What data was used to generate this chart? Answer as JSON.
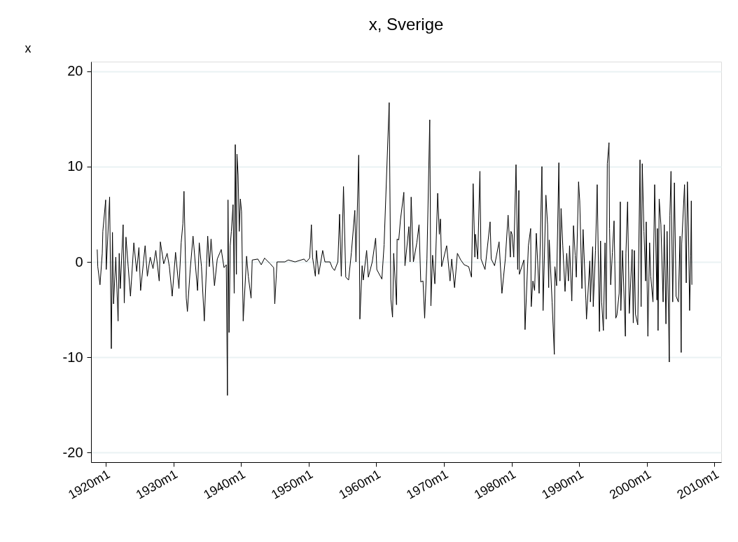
{
  "chart_data": {
    "type": "line",
    "title": "x, Sverige",
    "ylabel": "x",
    "xlim": [
      "1917-11",
      "2011-01"
    ],
    "ylim": [
      -21,
      21
    ],
    "xticks": [
      {
        "value": "1920-01",
        "label": "1920m1"
      },
      {
        "value": "1930-01",
        "label": "1930m1"
      },
      {
        "value": "1940-01",
        "label": "1940m1"
      },
      {
        "value": "1950-01",
        "label": "1950m1"
      },
      {
        "value": "1960-01",
        "label": "1960m1"
      },
      {
        "value": "1970-01",
        "label": "1970m1"
      },
      {
        "value": "1980-01",
        "label": "1980m1"
      },
      {
        "value": "1990-01",
        "label": "1990m1"
      },
      {
        "value": "2000-01",
        "label": "2000m1"
      },
      {
        "value": "2010-01",
        "label": "2010m1"
      }
    ],
    "yticks": [
      -20,
      -10,
      0,
      10,
      20
    ],
    "grid": "y",
    "line_style": "solid",
    "series": [
      {
        "color": "#000000",
        "x": [
          "1918-10",
          "1918-11",
          "1919-03",
          "1919-07",
          "1919-08",
          "1920-01",
          "1920-02",
          "1920-08",
          "1920-11",
          "1921-01",
          "1921-03",
          "1921-07",
          "1921-11",
          "1922-01",
          "1922-03",
          "1922-08",
          "1922-10",
          "1923-01",
          "1923-05",
          "1923-09",
          "1924-03",
          "1924-08",
          "1924-12",
          "1925-03",
          "1925-11",
          "1926-03",
          "1926-08",
          "1927-01",
          "1927-06",
          "1927-12",
          "1928-02",
          "1928-08",
          "1929-02",
          "1929-06",
          "1929-11",
          "1930-05",
          "1930-11",
          "1931-03",
          "1931-06",
          "1931-08",
          "1931-12",
          "1932-02",
          "1932-07",
          "1932-12",
          "1933-08",
          "1933-11",
          "1934-03",
          "1934-08",
          "1935-02",
          "1935-05",
          "1935-08",
          "1936-02",
          "1936-07",
          "1937-02",
          "1937-07",
          "1937-11",
          "1938-01",
          "1938-02",
          "1938-04",
          "1938-06",
          "1938-08",
          "1938-11",
          "1939-01",
          "1939-03",
          "1939-05",
          "1939-06",
          "1939-08",
          "1939-10",
          "1939-12",
          "1940-02",
          "1940-05",
          "1940-11",
          "1941-02",
          "1941-07",
          "1941-09",
          "1942-07",
          "1943-01",
          "1943-07",
          "1944-05",
          "1944-11",
          "1945-01",
          "1945-05",
          "1946-07",
          "1947-01",
          "1948-01",
          "1949-05",
          "1949-09",
          "1950-03",
          "1950-06",
          "1950-08",
          "1951-01",
          "1951-03",
          "1951-07",
          "1952-02",
          "1952-06",
          "1953-03",
          "1953-07",
          "1953-11",
          "1954-05",
          "1954-08",
          "1954-11",
          "1955-03",
          "1955-07",
          "1955-12",
          "1956-05",
          "1956-11",
          "1957-01",
          "1957-06",
          "1957-08",
          "1957-12",
          "1958-02",
          "1958-08",
          "1958-11",
          "1959-06",
          "1959-12",
          "1960-02",
          "1960-11",
          "1961-03",
          "1961-12",
          "1962-03",
          "1962-06",
          "1962-08",
          "1963-01",
          "1963-02",
          "1963-05",
          "1963-08",
          "1964-02",
          "1964-04",
          "1964-11",
          "1965-01",
          "1965-03",
          "1965-07",
          "1966-01",
          "1966-05",
          "1966-08",
          "1966-12",
          "1967-03",
          "1967-07",
          "1967-12",
          "1968-02",
          "1968-05",
          "1968-09",
          "1969-02",
          "1969-05",
          "1969-07",
          "1969-09",
          "1970-06",
          "1970-12",
          "1971-03",
          "1971-08",
          "1972-01",
          "1972-07",
          "1973-01",
          "1973-09",
          "1974-02",
          "1974-05",
          "1974-08",
          "1974-09",
          "1975-01",
          "1975-05",
          "1975-07",
          "1976-02",
          "1976-11",
          "1977-01",
          "1977-07",
          "1978-03",
          "1978-08",
          "1979-02",
          "1979-07",
          "1979-11",
          "1979-12",
          "1980-02",
          "1980-05",
          "1980-09",
          "1980-12",
          "1981-02",
          "1981-03",
          "1981-11",
          "1982-01",
          "1982-07",
          "1982-11",
          "1982-12",
          "1983-03",
          "1983-06",
          "1983-09",
          "1984-02",
          "1984-07",
          "1984-09",
          "1985-02",
          "1985-05",
          "1985-07",
          "1985-08",
          "1986-01",
          "1986-05",
          "1986-06",
          "1986-09",
          "1987-01",
          "1987-03",
          "1987-05",
          "1987-08",
          "1987-12",
          "1988-03",
          "1988-06",
          "1988-08",
          "1988-12",
          "1989-03",
          "1989-06",
          "1989-08",
          "1989-12",
          "1990-02",
          "1990-06",
          "1990-08",
          "1991-01",
          "1991-02",
          "1991-08",
          "1991-09",
          "1992-01",
          "1992-02",
          "1992-06",
          "1992-09",
          "1993-01",
          "1993-03",
          "1993-05",
          "1993-08",
          "1993-11",
          "1994-01",
          "1994-03",
          "1994-06",
          "1994-07",
          "1994-09",
          "1994-12",
          "1995-03",
          "1995-06",
          "1995-08",
          "1995-12",
          "1996-02",
          "1996-03",
          "1996-06",
          "1996-11",
          "1996-12",
          "1997-03",
          "1997-06",
          "1997-11",
          "1998-01",
          "1998-03",
          "1998-05",
          "1998-09",
          "1999-01",
          "1999-03",
          "1999-05",
          "1999-08",
          "1999-11",
          "1999-12",
          "2000-03",
          "2000-06",
          "2000-08",
          "2000-12",
          "2001-03",
          "2001-07",
          "2001-08",
          "2001-09",
          "2001-11",
          "2002-02",
          "2002-06",
          "2002-08",
          "2002-11",
          "2003-01",
          "2003-05",
          "2003-06",
          "2003-08",
          "2003-11",
          "2004-02",
          "2004-05",
          "2004-09",
          "2004-12",
          "2005-02",
          "2005-03",
          "2005-08",
          "2005-11",
          "2006-01",
          "2006-03",
          "2006-05",
          "2006-07",
          "2006-08",
          "2006-09"
        ],
        "values": [
          1.3,
          -0.5,
          -2.4,
          0.9,
          3.2,
          6.5,
          -0.8,
          6.8,
          -9.1,
          3.1,
          -4.4,
          0.5,
          -6.2,
          0.9,
          -2.8,
          3.9,
          -4.3,
          2.6,
          -0.5,
          -3.6,
          2.0,
          -1.0,
          1.5,
          -3.0,
          1.7,
          -1.5,
          0.5,
          -0.7,
          1.2,
          -2.0,
          2.1,
          -0.2,
          0.9,
          -0.5,
          -3.6,
          1.0,
          -2.8,
          2.0,
          4.0,
          7.4,
          -3.8,
          -5.2,
          -0.8,
          2.7,
          -3.0,
          2.0,
          -0.5,
          -6.2,
          2.7,
          -0.5,
          2.4,
          -2.5,
          0.3,
          1.3,
          -0.6,
          -0.3,
          -14.0,
          6.5,
          -7.4,
          1.7,
          3.2,
          6.0,
          -3.3,
          12.3,
          -1.3,
          11.3,
          9.1,
          3.2,
          6.6,
          5.3,
          -6.2,
          0.6,
          -1.5,
          -3.8,
          0.2,
          0.3,
          -0.3,
          0.4,
          -0.2,
          -0.6,
          -4.4,
          0,
          0,
          0.2,
          0,
          0.3,
          0,
          0.4,
          3.9,
          0.5,
          -1.5,
          1.2,
          -1.3,
          1.2,
          0,
          0,
          -0.6,
          -0.9,
          0,
          5.0,
          -1.5,
          7.9,
          -1.6,
          -1.9,
          1.0,
          5.4,
          0,
          11.2,
          -6.0,
          -0.4,
          -1.9,
          1.2,
          -1.6,
          0,
          2.5,
          -0.8,
          -1.8,
          1.8,
          16.7,
          -3.9,
          -5.8,
          0.9,
          -4.5,
          2.4,
          2.3,
          4.4,
          7.3,
          -0.4,
          3.7,
          0,
          6.8,
          0,
          2.0,
          3.9,
          -2.1,
          -2.0,
          -5.9,
          0.3,
          14.9,
          -4.6,
          0.7,
          -2.3,
          7.2,
          2.9,
          4.5,
          -0.5,
          1.7,
          -2.0,
          0.3,
          -2.7,
          0.9,
          0.2,
          -0.3,
          -0.5,
          -1.6,
          8.2,
          0.5,
          2.9,
          0.3,
          9.5,
          0.3,
          -0.8,
          4.2,
          0.3,
          -0.4,
          2.1,
          -3.3,
          0.3,
          4.9,
          0.5,
          3.2,
          2.9,
          0.5,
          10.2,
          -0.8,
          7.5,
          -1.3,
          0.2,
          -7.1,
          1.7,
          3.5,
          -4.7,
          -2.0,
          -3.0,
          3.0,
          -3.3,
          10.0,
          -5.1,
          7.0,
          3.9,
          -2.7,
          2.3,
          -4.2,
          -9.7,
          -0.5,
          -2.5,
          10.4,
          -2.0,
          5.6,
          1.7,
          -3.1,
          0.9,
          -2.0,
          1.7,
          -4.1,
          3.8,
          0.7,
          -1.6,
          8.4,
          6.4,
          -2.8,
          3.4,
          -4.1,
          -6.0,
          0.1,
          -4.2,
          1.6,
          -4.7,
          1.2,
          8.1,
          -7.3,
          2.2,
          -4.2,
          -7.2,
          2.0,
          -6.0,
          10.3,
          12.5,
          3.5,
          -2.4,
          1.0,
          4.3,
          -5.9,
          -5.6,
          -3.3,
          6.3,
          -5.1,
          1.2,
          -7.8,
          0.9,
          6.3,
          -5.4,
          1.3,
          -6.4,
          1.2,
          -5.5,
          -6.6,
          10.7,
          -4.7,
          10.3,
          3.2,
          -2.0,
          4.2,
          -7.8,
          2.0,
          -1.5,
          -4.2,
          8.1,
          -4.0,
          3.5,
          -7.2,
          6.6,
          3.9,
          -4.2,
          3.9,
          -6.5,
          3.2,
          -10.5,
          4.9,
          9.5,
          -4.2,
          8.3,
          -3.6,
          -4.2,
          2.7,
          -9.5,
          1.9,
          8.1,
          -2.2,
          8.4,
          3.6,
          -5.1,
          0.6,
          6.4,
          -2.4
        ]
      }
    ]
  }
}
